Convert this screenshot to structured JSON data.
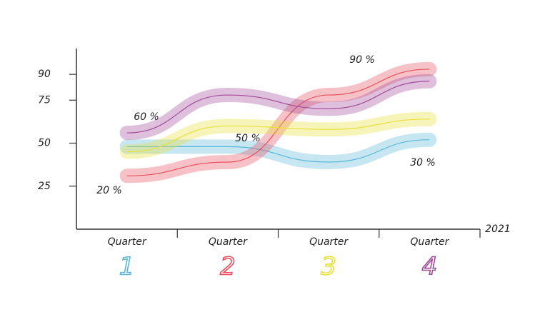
{
  "chart_data": {
    "type": "line",
    "categories": [
      "Quarter",
      "Quarter",
      "Quarter",
      "Quarter"
    ],
    "category_numbers": [
      "1",
      "2",
      "3",
      "4"
    ],
    "series": [
      {
        "color": "#5bb8d8",
        "values": [
          48,
          48,
          39,
          52
        ]
      },
      {
        "color": "#e8505e",
        "values": [
          31,
          39,
          78,
          93
        ]
      },
      {
        "color": "#e8e03a",
        "values": [
          45,
          60,
          58,
          64
        ]
      },
      {
        "color": "#a24a9a",
        "values": [
          56,
          78,
          70,
          86
        ]
      }
    ],
    "ylim": [
      0,
      105
    ],
    "yticks": [
      25,
      50,
      75,
      90
    ],
    "x_label": "2021",
    "annotations": [
      "60 %",
      "50 %",
      "90 %",
      "30 %",
      "20 %"
    ]
  }
}
